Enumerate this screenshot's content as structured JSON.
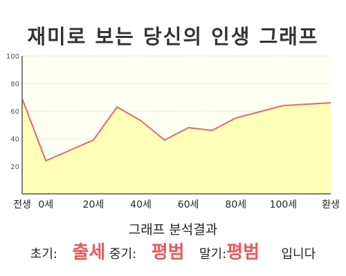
{
  "title": "재미로 보는 당신의 인생 그래프",
  "chart_data": {
    "type": "area",
    "x_labels": [
      "전생",
      "0세",
      "20세",
      "40세",
      "60세",
      "80세",
      "100세",
      "환생"
    ],
    "y_ticks": [
      20,
      40,
      60,
      80,
      100
    ],
    "ylim": [
      0,
      100
    ],
    "grid": true,
    "series": [
      {
        "x": [
          -10,
          0,
          20,
          30,
          40,
          50,
          60,
          70,
          80,
          100,
          120
        ],
        "y": [
          69,
          24,
          39,
          63,
          53,
          39,
          48,
          46,
          55,
          64,
          66
        ]
      }
    ],
    "colors": {
      "line": "#e06a6a",
      "fill": "#ffffb8",
      "plot_bg": "#fffff4",
      "grid": "#d4d4d4"
    }
  },
  "analysis": {
    "title": "그래프 분석결과",
    "early_label": "초기:",
    "early_value": "출세",
    "mid_label": "중기:",
    "mid_value": "평범",
    "late_label": "말기:",
    "late_value": "평범",
    "suffix": "입니다"
  }
}
